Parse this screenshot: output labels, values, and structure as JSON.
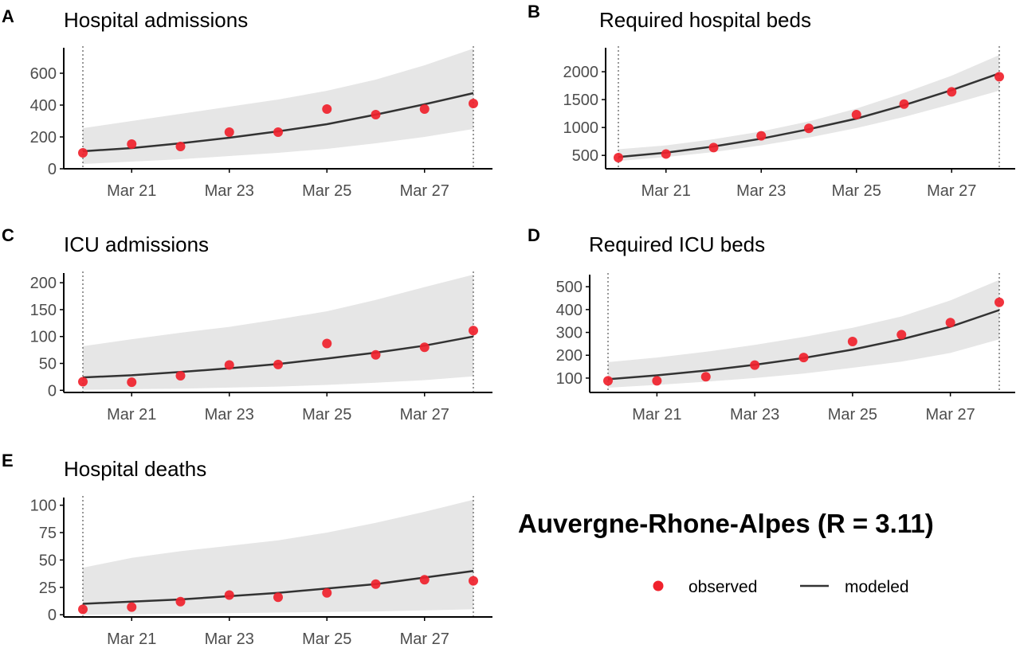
{
  "figure_title": "Auvergne-Rhone-Alpes (R = 3.11)",
  "legend": {
    "observed_label": "observed",
    "modeled_label": "modeled"
  },
  "colors": {
    "observed": "#f0222c",
    "modeled": "#333333",
    "band": "#e6e6e6",
    "axis": "#000000",
    "ticks": "#4d4d4d"
  },
  "chart_data": [
    {
      "letter": "A",
      "title": "Hospital admissions",
      "type": "line",
      "x": [
        "Mar 20",
        "Mar 21",
        "Mar 22",
        "Mar 23",
        "Mar 24",
        "Mar 25",
        "Mar 26",
        "Mar 27",
        "Mar 28"
      ],
      "xticks": [
        "Mar 21",
        "Mar 23",
        "Mar 25",
        "Mar 27"
      ],
      "ylim": [
        0,
        760
      ],
      "yticks": [
        0,
        200,
        400,
        600
      ],
      "observed": [
        100,
        155,
        140,
        230,
        230,
        375,
        340,
        375,
        410
      ],
      "modeled": [
        110,
        130,
        160,
        195,
        235,
        280,
        340,
        405,
        475
      ],
      "lower": [
        30,
        45,
        60,
        80,
        100,
        125,
        160,
        200,
        250
      ],
      "upper": [
        255,
        300,
        345,
        390,
        435,
        490,
        560,
        650,
        755
      ],
      "vlines": [
        "Mar 20",
        "Mar 28"
      ]
    },
    {
      "letter": "B",
      "title": "Required hospital beds",
      "type": "line",
      "x": [
        "Mar 20",
        "Mar 21",
        "Mar 22",
        "Mar 23",
        "Mar 24",
        "Mar 25",
        "Mar 26",
        "Mar 27",
        "Mar 28"
      ],
      "xticks": [
        "Mar 21",
        "Mar 23",
        "Mar 25",
        "Mar 27"
      ],
      "ylim": [
        260,
        2430
      ],
      "yticks": [
        500,
        1000,
        1500,
        2000
      ],
      "observed": [
        460,
        525,
        640,
        850,
        985,
        1230,
        1420,
        1640,
        1910
      ],
      "modeled": [
        470,
        550,
        660,
        800,
        970,
        1160,
        1400,
        1670,
        1970
      ],
      "lower": [
        400,
        470,
        560,
        680,
        820,
        990,
        1190,
        1420,
        1660
      ],
      "upper": [
        610,
        680,
        790,
        930,
        1110,
        1340,
        1620,
        1930,
        2300
      ],
      "vlines": [
        "Mar 20",
        "Mar 28"
      ]
    },
    {
      "letter": "C",
      "title": "ICU admissions",
      "type": "line",
      "x": [
        "Mar 20",
        "Mar 21",
        "Mar 22",
        "Mar 23",
        "Mar 24",
        "Mar 25",
        "Mar 26",
        "Mar 27",
        "Mar 28"
      ],
      "xticks": [
        "Mar 21",
        "Mar 23",
        "Mar 25",
        "Mar 27"
      ],
      "ylim": [
        -4,
        218
      ],
      "yticks": [
        0,
        50,
        100,
        150,
        200
      ],
      "observed": [
        16,
        15,
        27,
        47,
        48,
        87,
        66,
        80,
        111
      ],
      "modeled": [
        24,
        28,
        34,
        41,
        49,
        59,
        70,
        83,
        100
      ],
      "lower": [
        1,
        2,
        3,
        5,
        7,
        10,
        14,
        19,
        26
      ],
      "upper": [
        82,
        95,
        107,
        118,
        132,
        147,
        168,
        192,
        215
      ],
      "vlines": [
        "Mar 20",
        "Mar 28"
      ]
    },
    {
      "letter": "D",
      "title": "Required ICU beds",
      "type": "line",
      "x": [
        "Mar 20",
        "Mar 21",
        "Mar 22",
        "Mar 23",
        "Mar 24",
        "Mar 25",
        "Mar 26",
        "Mar 27",
        "Mar 28"
      ],
      "xticks": [
        "Mar 21",
        "Mar 23",
        "Mar 25",
        "Mar 27"
      ],
      "ylim": [
        37,
        553
      ],
      "yticks": [
        100,
        200,
        300,
        400,
        500
      ],
      "observed": [
        88,
        88,
        106,
        157,
        190,
        260,
        290,
        343,
        432
      ],
      "modeled": [
        95,
        112,
        133,
        158,
        188,
        225,
        270,
        325,
        398
      ],
      "lower": [
        58,
        70,
        84,
        100,
        120,
        145,
        172,
        210,
        270
      ],
      "upper": [
        170,
        190,
        215,
        245,
        280,
        320,
        370,
        440,
        530
      ],
      "vlines": [
        "Mar 20",
        "Mar 28"
      ]
    },
    {
      "letter": "E",
      "title": "Hospital deaths",
      "type": "line",
      "x": [
        "Mar 20",
        "Mar 21",
        "Mar 22",
        "Mar 23",
        "Mar 24",
        "Mar 25",
        "Mar 26",
        "Mar 27",
        "Mar 28"
      ],
      "xticks": [
        "Mar 21",
        "Mar 23",
        "Mar 25",
        "Mar 27"
      ],
      "ylim": [
        -2,
        107
      ],
      "yticks": [
        0,
        25,
        50,
        75,
        100
      ],
      "observed": [
        5,
        7,
        12,
        18,
        16,
        20,
        28,
        32,
        31
      ],
      "modeled": [
        10,
        12,
        14,
        17,
        20,
        24,
        28,
        34,
        40
      ],
      "lower": [
        0,
        0.5,
        1,
        1.5,
        2,
        2.5,
        3,
        4,
        5
      ],
      "upper": [
        43,
        52,
        58,
        63,
        68,
        75,
        84,
        94,
        105
      ],
      "vlines": [
        "Mar 20",
        "Mar 28"
      ]
    }
  ]
}
